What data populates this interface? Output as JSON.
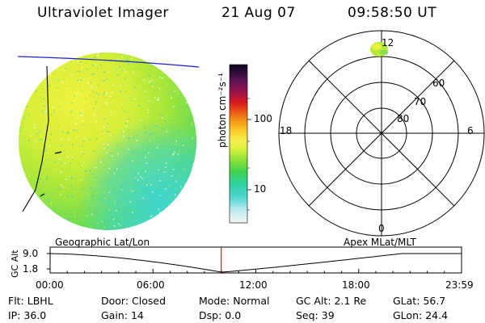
{
  "header": {
    "title": "Ultraviolet Imager",
    "date": "21 Aug 07",
    "time": "09:58:50 UT"
  },
  "colorbar": {
    "unit_label": "photon cm⁻²s⁻¹",
    "ticks": [
      "100",
      "10"
    ],
    "colors": [
      "#000033",
      "#3a0a4a",
      "#6a145a",
      "#c0102a",
      "#ee2a1a",
      "#f57a12",
      "#f7b218",
      "#f8e64a",
      "#d8f23e",
      "#9de834",
      "#5cd84a",
      "#2ed3a6",
      "#46d7d6",
      "#9fe5ea",
      "#e6f3f4"
    ]
  },
  "polar": {
    "labels": {
      "top": "12",
      "left": "18",
      "right": "6",
      "bottom": "0"
    },
    "rings": [
      "60",
      "70",
      "80"
    ]
  },
  "timeline": {
    "left_label": "Geographic Lat/Lon",
    "right_label": "Apex  MLat/MLT",
    "ylabel": "GC Alt",
    "yticks": [
      "9.0",
      "1.8"
    ],
    "xticks": [
      "00:00",
      "06:00",
      "12:00",
      "18:00",
      "23:59"
    ],
    "marker_time": "09:58:50"
  },
  "info": {
    "row1": [
      {
        "label": "Flt:",
        "value": "LBHL"
      },
      {
        "label": "Door:",
        "value": "Closed"
      },
      {
        "label": "Mode:",
        "value": "Normal"
      },
      {
        "label": "GC Alt:",
        "value": "2.1 Re"
      },
      {
        "label": "GLat:",
        "value": "56.7"
      }
    ],
    "row2": [
      {
        "label": "IP:",
        "value": "36.0"
      },
      {
        "label": "Gain:",
        "value": "14"
      },
      {
        "label": "Dsp:",
        "value": "0.0"
      },
      {
        "label": "Seq:",
        "value": "39"
      },
      {
        "label": "GLon:",
        "value": "24.4"
      }
    ]
  },
  "colors": {
    "earth_disk": "#a8e83a",
    "earth_bright": "#e6f23e",
    "earth_cyan": "#3fd6c6",
    "marker": "#e01010",
    "latlon_line": "#1a22c8"
  }
}
